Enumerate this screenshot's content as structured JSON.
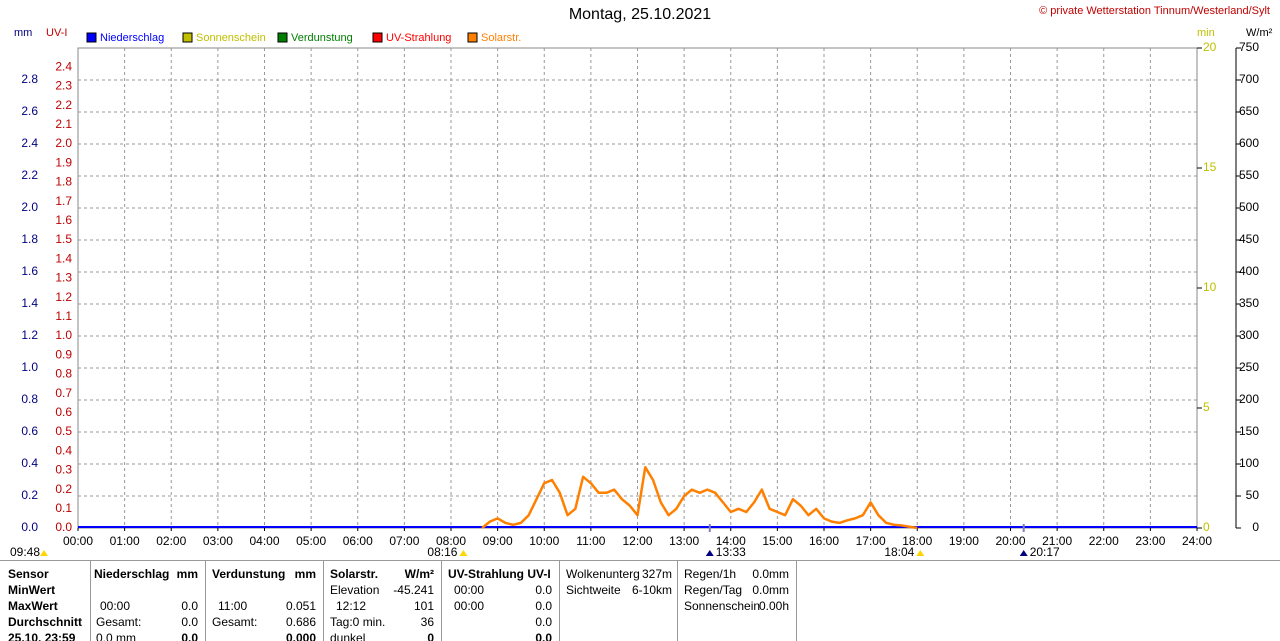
{
  "chart_data": {
    "type": "line",
    "title": "Montag, 25.10.2021",
    "credit": "© private Wetterstation Tinnum/Westerland/Sylt",
    "units": {
      "mm": "mm",
      "uv": "UV-I",
      "min": "min",
      "solar": "W/m²"
    },
    "series": [
      {
        "name": "Niederschlag",
        "color": "#0000ff"
      },
      {
        "name": "Sonnenschein",
        "color": "#c0c000"
      },
      {
        "name": "Verdunstung",
        "color": "#008000"
      },
      {
        "name": "UV-Strahlung",
        "color": "#ff0000"
      },
      {
        "name": "Solarstr.",
        "color": "#ff8000",
        "axis": "y3",
        "x": [
          "08:40",
          "08:50",
          "09:00",
          "09:10",
          "09:20",
          "09:30",
          "09:40",
          "09:50",
          "10:00",
          "10:10",
          "10:20",
          "10:30",
          "10:40",
          "10:50",
          "11:00",
          "11:10",
          "11:20",
          "11:30",
          "11:40",
          "11:50",
          "12:00",
          "12:10",
          "12:20",
          "12:30",
          "12:40",
          "12:50",
          "13:00",
          "13:10",
          "13:20",
          "13:30",
          "13:40",
          "13:50",
          "14:00",
          "14:10",
          "14:20",
          "14:30",
          "14:40",
          "14:50",
          "15:00",
          "15:10",
          "15:20",
          "15:30",
          "15:40",
          "15:50",
          "16:00",
          "16:10",
          "16:20",
          "16:30",
          "16:40",
          "16:50",
          "17:00",
          "17:10",
          "17:20",
          "17:30",
          "17:40",
          "17:50",
          "18:00"
        ],
        "values": [
          0,
          10,
          15,
          8,
          5,
          8,
          20,
          45,
          70,
          75,
          55,
          20,
          30,
          80,
          70,
          55,
          55,
          60,
          45,
          35,
          20,
          95,
          75,
          40,
          20,
          30,
          50,
          60,
          55,
          60,
          55,
          40,
          25,
          30,
          25,
          40,
          60,
          30,
          25,
          20,
          45,
          35,
          20,
          30,
          15,
          10,
          8,
          12,
          15,
          20,
          40,
          20,
          8,
          5,
          4,
          2,
          0
        ]
      }
    ],
    "xlim": [
      "00:00",
      "24:00"
    ],
    "xticks": [
      "00:00",
      "01:00",
      "02:00",
      "03:00",
      "04:00",
      "05:00",
      "06:00",
      "07:00",
      "08:00",
      "09:00",
      "10:00",
      "11:00",
      "12:00",
      "13:00",
      "14:00",
      "15:00",
      "16:00",
      "17:00",
      "18:00",
      "19:00",
      "20:00",
      "21:00",
      "22:00",
      "23:00",
      "24:00"
    ],
    "ylim": [
      0,
      3.0
    ],
    "yticks": [
      {
        "value": 0,
        "label": "0.0"
      },
      0.2,
      0.4,
      0.6,
      0.8,
      {
        "value": 1,
        "label": "1.0"
      },
      1.2,
      1.4,
      1.6,
      1.8,
      {
        "value": 2,
        "label": "2.0"
      },
      2.2,
      2.4,
      2.6,
      2.8
    ],
    "uvlim": [
      0,
      2.5
    ],
    "uvticks": [
      {
        "value": 0,
        "label": "0.0"
      },
      0.1,
      0.2,
      0.3,
      0.4,
      0.5,
      0.6,
      0.7,
      0.8,
      0.9,
      {
        "value": 1,
        "label": "1.0"
      },
      1.1,
      1.2,
      1.3,
      1.4,
      1.5,
      1.6,
      1.7,
      1.8,
      1.9,
      {
        "value": 2,
        "label": "2.0"
      },
      2.1,
      2.2,
      2.3,
      2.4
    ],
    "y2lim": [
      0,
      20
    ],
    "y2ticks": [
      0,
      5,
      10,
      15,
      20
    ],
    "y3lim": [
      0,
      750
    ],
    "y3ticks": [
      0,
      50,
      100,
      150,
      200,
      250,
      300,
      350,
      400,
      450,
      500,
      550,
      600,
      650,
      700,
      750
    ],
    "grid": true,
    "annotations": [
      "09:48",
      "08:16",
      "13:33",
      "18:04",
      "20:17"
    ]
  },
  "table": {
    "sensor": [
      "Sensor",
      "MinWert",
      "MaxWert",
      "Durchschnitt",
      "25.10. 23:59"
    ],
    "niederschlag": {
      "header": "Niederschlag",
      "unit": "mm",
      "max_time": "00:00",
      "max": "0.0",
      "total_label": "Gesamt:",
      "total": "0.0",
      "day": "0.0 mm",
      "day_value": "0.0"
    },
    "verdunstung": {
      "header": "Verdunstung",
      "unit": "mm",
      "max_time": "11:00",
      "max": "0.051",
      "total_label": "Gesamt:",
      "total": "0.686",
      "day_value": "0.000"
    },
    "solar": {
      "header": "Solarstr.",
      "unit": "W/m²",
      "elev_label": "Elevation",
      "elev": "-45.241",
      "max_time": "12:12",
      "max": "101",
      "day_label": "Tag:0 min.",
      "avg": "36",
      "state": "dunkel",
      "state_value": "0"
    },
    "uv": {
      "header": "UV-Strahlung UV-I",
      "min_time": "00:00",
      "min": "0.0",
      "max_time": "00:00",
      "max": "0.0",
      "avg": "0.0",
      "day_value": "0.0"
    },
    "cloud": {
      "base_label": "Wolkenunterg",
      "base": "327m",
      "vis_label": "Sichtweite",
      "vis": "6-10km"
    },
    "rain": {
      "h_label": "Regen/1h",
      "h": "0.0mm",
      "day_label": "Regen/Tag",
      "day": "0.0mm",
      "sun_label": "Sonnenschein",
      "sun": "0.00h"
    }
  }
}
